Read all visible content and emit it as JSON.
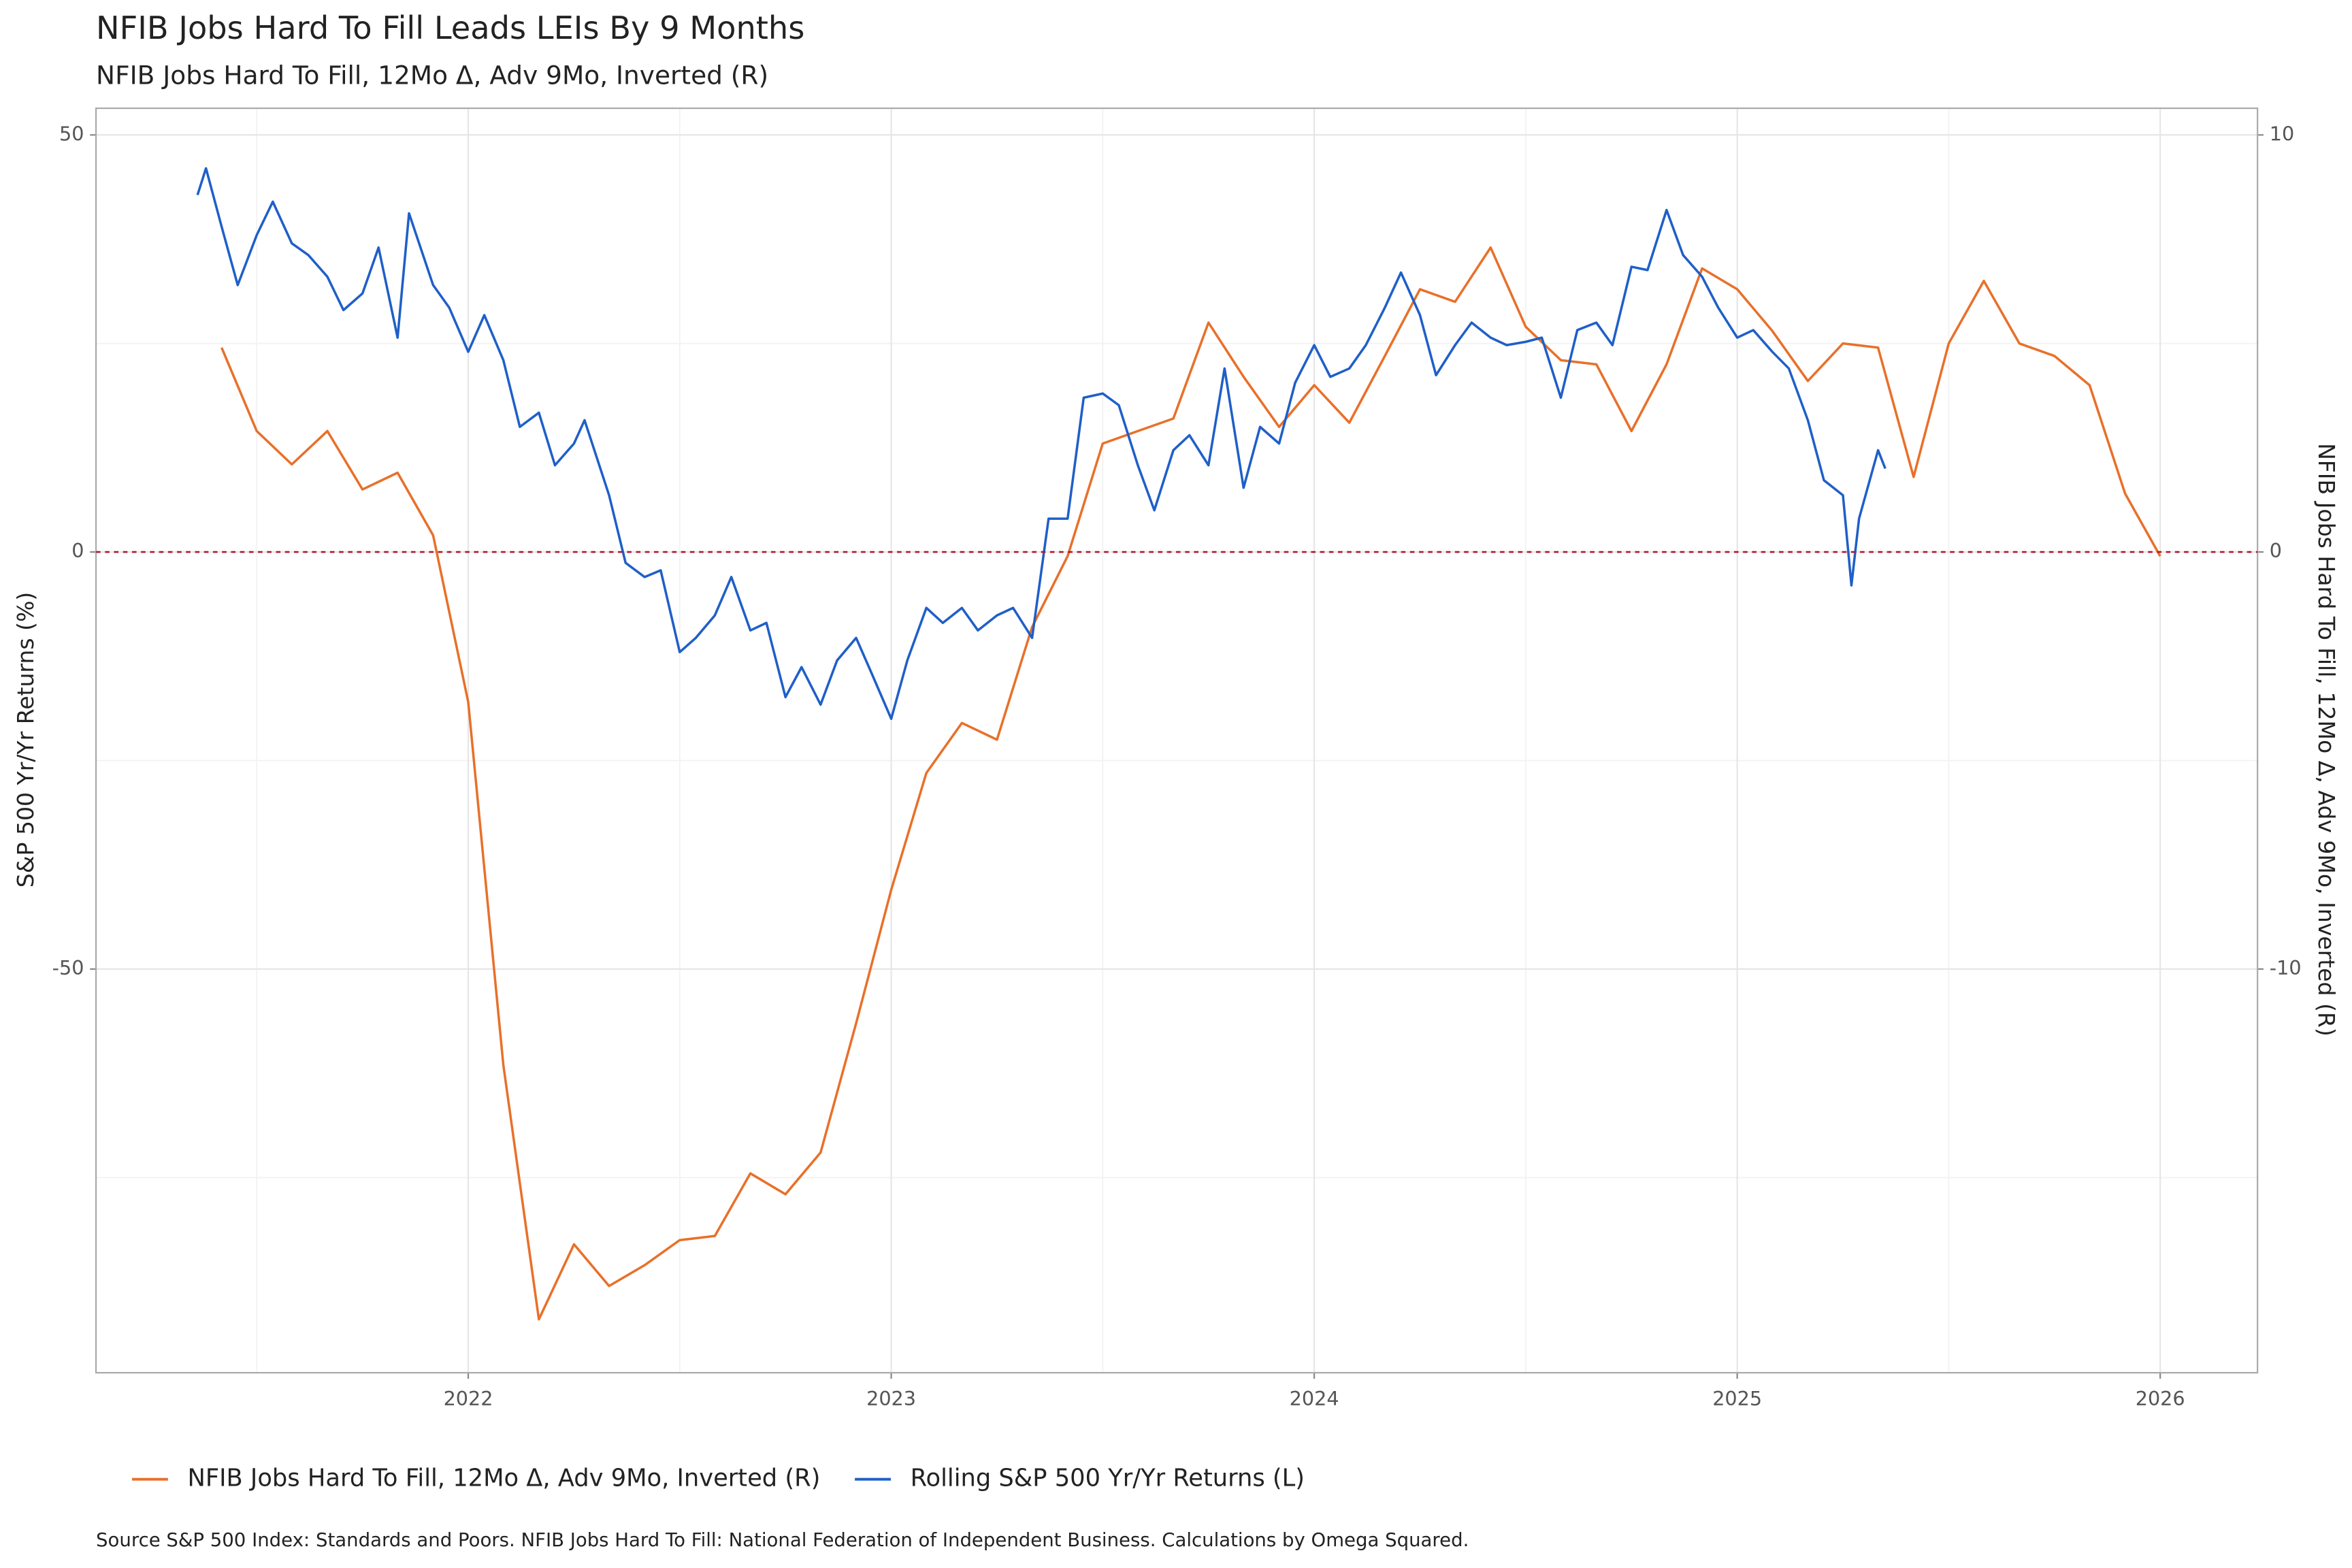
{
  "chart_data": {
    "type": "line",
    "title": "NFIB Jobs Hard To Fill  Leads LEIs By  9  Months",
    "subtitle": "NFIB Jobs Hard To Fill, 12Mo Δ, Adv 9Mo, Inverted (R)",
    "ylabel": "S&P 500 Yr/Yr Returns (%)",
    "y2label": "NFIB Jobs Hard To Fill, 12Mo Δ, Adv 9Mo, Inverted (R)",
    "source": "Source S&P 500 Index: Standards and Poors. NFIB Jobs Hard To Fill: National Federation of Independent Business. Calculations by Omega Squared.",
    "xlim": [
      2021.12,
      2026.23
    ],
    "xticks": [
      2022,
      2023,
      2024,
      2025,
      2026
    ],
    "minor_xticks": [
      2021.5,
      2022.5,
      2023.5,
      2024.5,
      2025.5
    ],
    "ylim": [
      -98.4,
      53.2
    ],
    "yticks": [
      -50,
      0,
      50
    ],
    "minor_yticks": [
      -75,
      -25,
      25
    ],
    "y2lim": [
      -19.68,
      10.64
    ],
    "y2ticks": [
      -10,
      0,
      10
    ],
    "grid": true,
    "reference_line": {
      "y": 0,
      "color": "#b2182b"
    },
    "legend": "bottom",
    "series": [
      {
        "name": "NFIB Jobs Hard To Fill, 12Mo Δ, Adv 9Mo, Inverted (R)",
        "color": "#e8702a",
        "axis": "y2",
        "x": [
          2021.417,
          2021.5,
          2021.583,
          2021.667,
          2021.75,
          2021.833,
          2021.917,
          2022.0,
          2022.083,
          2022.167,
          2022.25,
          2022.333,
          2022.417,
          2022.5,
          2022.583,
          2022.667,
          2022.75,
          2022.833,
          2022.917,
          2023.0,
          2023.083,
          2023.167,
          2023.25,
          2023.333,
          2023.417,
          2023.5,
          2023.583,
          2023.667,
          2023.75,
          2023.833,
          2023.917,
          2024.0,
          2024.083,
          2024.167,
          2024.25,
          2024.333,
          2024.417,
          2024.5,
          2024.583,
          2024.667,
          2024.75,
          2024.833,
          2024.917,
          2025.0,
          2025.083,
          2025.167,
          2025.25,
          2025.333,
          2025.417,
          2025.5,
          2025.583,
          2025.667,
          2025.75,
          2025.833,
          2025.917,
          2026.0
        ],
        "values": [
          4.9,
          2.9,
          2.1,
          2.9,
          1.5,
          1.9,
          0.4,
          -3.6,
          -12.3,
          -18.4,
          -16.6,
          -17.6,
          -17.1,
          -16.5,
          -16.4,
          -14.9,
          -15.4,
          -14.4,
          -11.3,
          -8.1,
          -5.3,
          -4.1,
          -4.5,
          -1.8,
          -0.1,
          2.6,
          2.9,
          3.2,
          5.5,
          4.2,
          3.0,
          4.0,
          3.1,
          4.7,
          6.3,
          6.0,
          7.3,
          5.4,
          4.6,
          4.5,
          2.9,
          4.5,
          6.8,
          6.3,
          5.3,
          4.1,
          5.0,
          4.9,
          1.8,
          5.0,
          6.5,
          5.0,
          4.7,
          4.0,
          1.4,
          -0.1
        ]
      },
      {
        "name": "Rolling S&P 500 Yr/Yr Returns (L)",
        "color": "#1f5fc8",
        "axis": "y",
        "x": [
          2021.36,
          2021.38,
          2021.417,
          2021.455,
          2021.5,
          2021.538,
          2021.583,
          2021.622,
          2021.667,
          2021.705,
          2021.75,
          2021.788,
          2021.833,
          2021.86,
          2021.917,
          2021.955,
          2022.0,
          2022.038,
          2022.083,
          2022.122,
          2022.167,
          2022.205,
          2022.25,
          2022.275,
          2022.333,
          2022.372,
          2022.417,
          2022.455,
          2022.5,
          2022.538,
          2022.583,
          2022.622,
          2022.667,
          2022.705,
          2022.75,
          2022.788,
          2022.833,
          2022.872,
          2022.917,
          2022.955,
          2023.0,
          2023.038,
          2023.083,
          2023.122,
          2023.167,
          2023.205,
          2023.25,
          2023.288,
          2023.333,
          2023.372,
          2023.417,
          2023.455,
          2023.5,
          2023.538,
          2023.583,
          2023.622,
          2023.667,
          2023.705,
          2023.75,
          2023.788,
          2023.833,
          2023.872,
          2023.917,
          2023.955,
          2024.0,
          2024.038,
          2024.083,
          2024.122,
          2024.167,
          2024.205,
          2024.25,
          2024.288,
          2024.333,
          2024.372,
          2024.417,
          2024.455,
          2024.5,
          2024.538,
          2024.583,
          2024.622,
          2024.667,
          2024.705,
          2024.75,
          2024.788,
          2024.833,
          2024.872,
          2024.917,
          2024.955,
          2025.0,
          2025.038,
          2025.083,
          2025.122,
          2025.167,
          2025.205,
          2025.25,
          2025.27,
          2025.288,
          2025.333,
          2025.35
        ],
        "values": [
          42.8,
          46,
          39,
          32,
          38,
          42,
          37,
          35.6,
          33,
          29,
          31,
          36.5,
          25.7,
          40.6,
          32,
          29.3,
          24,
          28.4,
          23,
          15,
          16.7,
          10.4,
          13,
          15.8,
          6.8,
          -1.3,
          -3,
          -2.2,
          -12,
          -10.3,
          -7.6,
          -3,
          -9.4,
          -8.5,
          -17.4,
          -13.8,
          -18.3,
          -13,
          -10.3,
          -14.7,
          -20,
          -13,
          -6.7,
          -8.5,
          -6.7,
          -9.4,
          -7.6,
          -6.7,
          -10.3,
          4,
          4,
          18.5,
          19,
          17.6,
          10.4,
          5,
          12.2,
          14,
          10.4,
          22,
          7.7,
          15,
          13,
          20.3,
          24.8,
          21,
          22,
          24.8,
          29.3,
          33.5,
          28.4,
          21.2,
          24.8,
          27.5,
          25.7,
          24.8,
          25.2,
          25.7,
          18.5,
          26.6,
          27.5,
          24.8,
          34.2,
          33.8,
          41,
          35.6,
          33,
          29.3,
          25.7,
          26.6,
          24,
          22,
          15.8,
          8.6,
          6.8,
          -4,
          4,
          12.2,
          10
        ]
      }
    ]
  }
}
